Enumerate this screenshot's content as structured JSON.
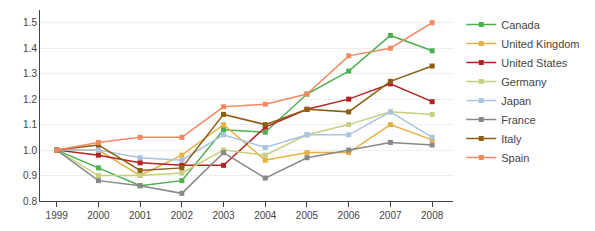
{
  "chart_data": {
    "type": "line",
    "x": [
      1999,
      2000,
      2001,
      2002,
      2003,
      2004,
      2005,
      2006,
      2007,
      2008
    ],
    "series": [
      {
        "name": "Canada",
        "color": "#4caf50",
        "marker": "square",
        "values": [
          1.0,
          0.93,
          0.86,
          0.88,
          1.08,
          1.07,
          1.22,
          1.31,
          1.45,
          1.39
        ]
      },
      {
        "name": "United Kingdom",
        "color": "#e8b040",
        "marker": "square",
        "values": [
          1.0,
          1.0,
          0.9,
          0.98,
          1.1,
          0.96,
          0.99,
          0.99,
          1.1,
          1.04
        ]
      },
      {
        "name": "United States",
        "color": "#b22222",
        "marker": "square",
        "values": [
          1.0,
          0.98,
          0.95,
          0.94,
          0.94,
          1.09,
          1.16,
          1.2,
          1.26,
          1.19
        ]
      },
      {
        "name": "Germany",
        "color": "#c8cf7e",
        "marker": "square",
        "values": [
          1.0,
          0.9,
          0.9,
          0.91,
          1.0,
          0.98,
          1.06,
          1.1,
          1.15,
          1.14
        ]
      },
      {
        "name": "Japan",
        "color": "#a8c4e0",
        "marker": "square",
        "values": [
          1.0,
          1.0,
          0.97,
          0.96,
          1.06,
          1.01,
          1.06,
          1.06,
          1.15,
          1.05
        ]
      },
      {
        "name": "France",
        "color": "#888888",
        "marker": "square",
        "values": [
          1.0,
          0.88,
          0.86,
          0.83,
          0.99,
          0.89,
          0.97,
          1.0,
          1.03,
          1.02
        ]
      },
      {
        "name": "Italy",
        "color": "#8B5e10",
        "marker": "square",
        "values": [
          1.0,
          1.02,
          0.92,
          0.93,
          1.14,
          1.1,
          1.16,
          1.15,
          1.27,
          1.33
        ]
      },
      {
        "name": "Spain",
        "color": "#f4895f",
        "marker": "square",
        "values": [
          1.0,
          1.03,
          1.05,
          1.05,
          1.17,
          1.18,
          1.22,
          1.37,
          1.4,
          1.5
        ]
      }
    ],
    "xlim": [
      1998.6,
      2008.5
    ],
    "xticks": [
      1999,
      2000,
      2001,
      2002,
      2003,
      2004,
      2005,
      2006,
      2007,
      2008
    ],
    "ylim": [
      0.8,
      1.55
    ],
    "yticks": [
      0.8,
      0.9,
      {
        "value": 1,
        "label": "1.0"
      },
      1.1,
      1.2,
      1.3,
      1.4,
      1.5
    ],
    "grid": "y",
    "legend": "right"
  }
}
